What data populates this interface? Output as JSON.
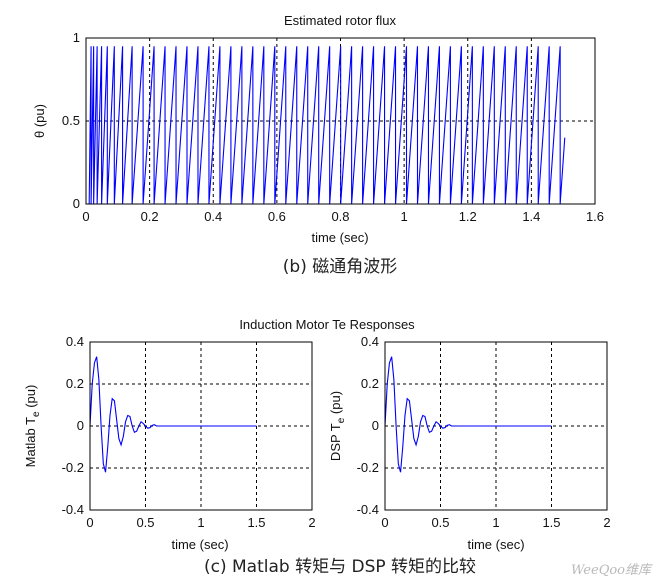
{
  "chart_data": [
    {
      "type": "line",
      "title": "Estimated rotor flux",
      "xlabel": "time (sec)",
      "ylabel": "θ (pu)",
      "xlim": [
        0,
        1.6
      ],
      "ylim": [
        0,
        1
      ],
      "xticks": [
        "0",
        "0.2",
        "0.4",
        "0.6",
        "0.8",
        "1",
        "1.2",
        "1.4",
        "1.6"
      ],
      "yticks": [
        "0",
        "0.5",
        "1"
      ],
      "grid": true,
      "series": [
        {
          "color": "#0000ff",
          "waveform": "sawtooth",
          "x_start": 0.01,
          "x_end": 1.505,
          "period": 0.0345,
          "y_min": 0,
          "y_max": 0.95,
          "early_periods": [
            0.006,
            0.008,
            0.011,
            0.014,
            0.018,
            0.022,
            0.026,
            0.03
          ]
        }
      ],
      "caption": "(b)  磁通角波形"
    },
    {
      "type": "line",
      "title": "Induction Motor Te Responses",
      "xlabel": "time (sec)",
      "ylabel": "Matlab T",
      "ylabel_sub": "e",
      "ylabel_unit": "(pu)",
      "xlim": [
        0,
        2
      ],
      "ylim": [
        -0.4,
        0.4
      ],
      "xticks": [
        "0",
        "0.5",
        "1",
        "1.5",
        "2"
      ],
      "yticks": [
        "-0.4",
        "-0.2",
        "0",
        "0.2",
        "0.4"
      ],
      "grid": true,
      "series": [
        {
          "color": "#0000ff",
          "x": [
            0,
            0.02,
            0.04,
            0.06,
            0.08,
            0.1,
            0.12,
            0.14,
            0.16,
            0.18,
            0.2,
            0.22,
            0.24,
            0.26,
            0.28,
            0.3,
            0.32,
            0.34,
            0.36,
            0.38,
            0.4,
            0.42,
            0.44,
            0.46,
            0.48,
            0.5,
            0.52,
            0.54,
            0.56,
            0.58,
            0.6,
            0.65,
            0.7,
            1.0,
            1.5
          ],
          "y": [
            0,
            0.2,
            0.3,
            0.33,
            0.22,
            0.0,
            -0.18,
            -0.22,
            -0.1,
            0.05,
            0.13,
            0.12,
            0.03,
            -0.06,
            -0.09,
            -0.05,
            0.02,
            0.05,
            0.045,
            0.0,
            -0.03,
            -0.025,
            0.0,
            0.02,
            0.012,
            0.0,
            -0.01,
            -0.008,
            0.003,
            0.006,
            0.0,
            0.0,
            0.0,
            0.0,
            0.0
          ]
        }
      ]
    },
    {
      "type": "line",
      "xlabel": "time (sec)",
      "ylabel": "DSP T",
      "ylabel_sub": "e",
      "ylabel_unit": "(pu)",
      "xlim": [
        0,
        2
      ],
      "ylim": [
        -0.4,
        0.4
      ],
      "xticks": [
        "0",
        "0.5",
        "1",
        "1.5",
        "2"
      ],
      "yticks": [
        "-0.4",
        "-0.2",
        "0",
        "0.2",
        "0.4"
      ],
      "grid": true,
      "series": [
        {
          "color": "#0000ff",
          "x": [
            0,
            0.02,
            0.04,
            0.06,
            0.08,
            0.1,
            0.12,
            0.14,
            0.16,
            0.18,
            0.2,
            0.22,
            0.24,
            0.26,
            0.28,
            0.3,
            0.32,
            0.34,
            0.36,
            0.38,
            0.4,
            0.42,
            0.44,
            0.46,
            0.48,
            0.5,
            0.52,
            0.54,
            0.56,
            0.58,
            0.6,
            0.65,
            0.7,
            1.0,
            1.5
          ],
          "y": [
            0,
            0.2,
            0.3,
            0.33,
            0.22,
            0.0,
            -0.18,
            -0.22,
            -0.1,
            0.05,
            0.13,
            0.12,
            0.03,
            -0.06,
            -0.09,
            -0.05,
            0.02,
            0.05,
            0.045,
            0.0,
            -0.03,
            -0.025,
            0.0,
            0.02,
            0.012,
            0.0,
            -0.01,
            -0.008,
            0.003,
            0.006,
            0.0,
            0.0,
            0.0,
            0.0,
            0.0
          ]
        }
      ],
      "caption": "(c)   Matlab 转矩与 DSP 转矩的比较"
    }
  ],
  "watermark": "WeeQoo维库"
}
